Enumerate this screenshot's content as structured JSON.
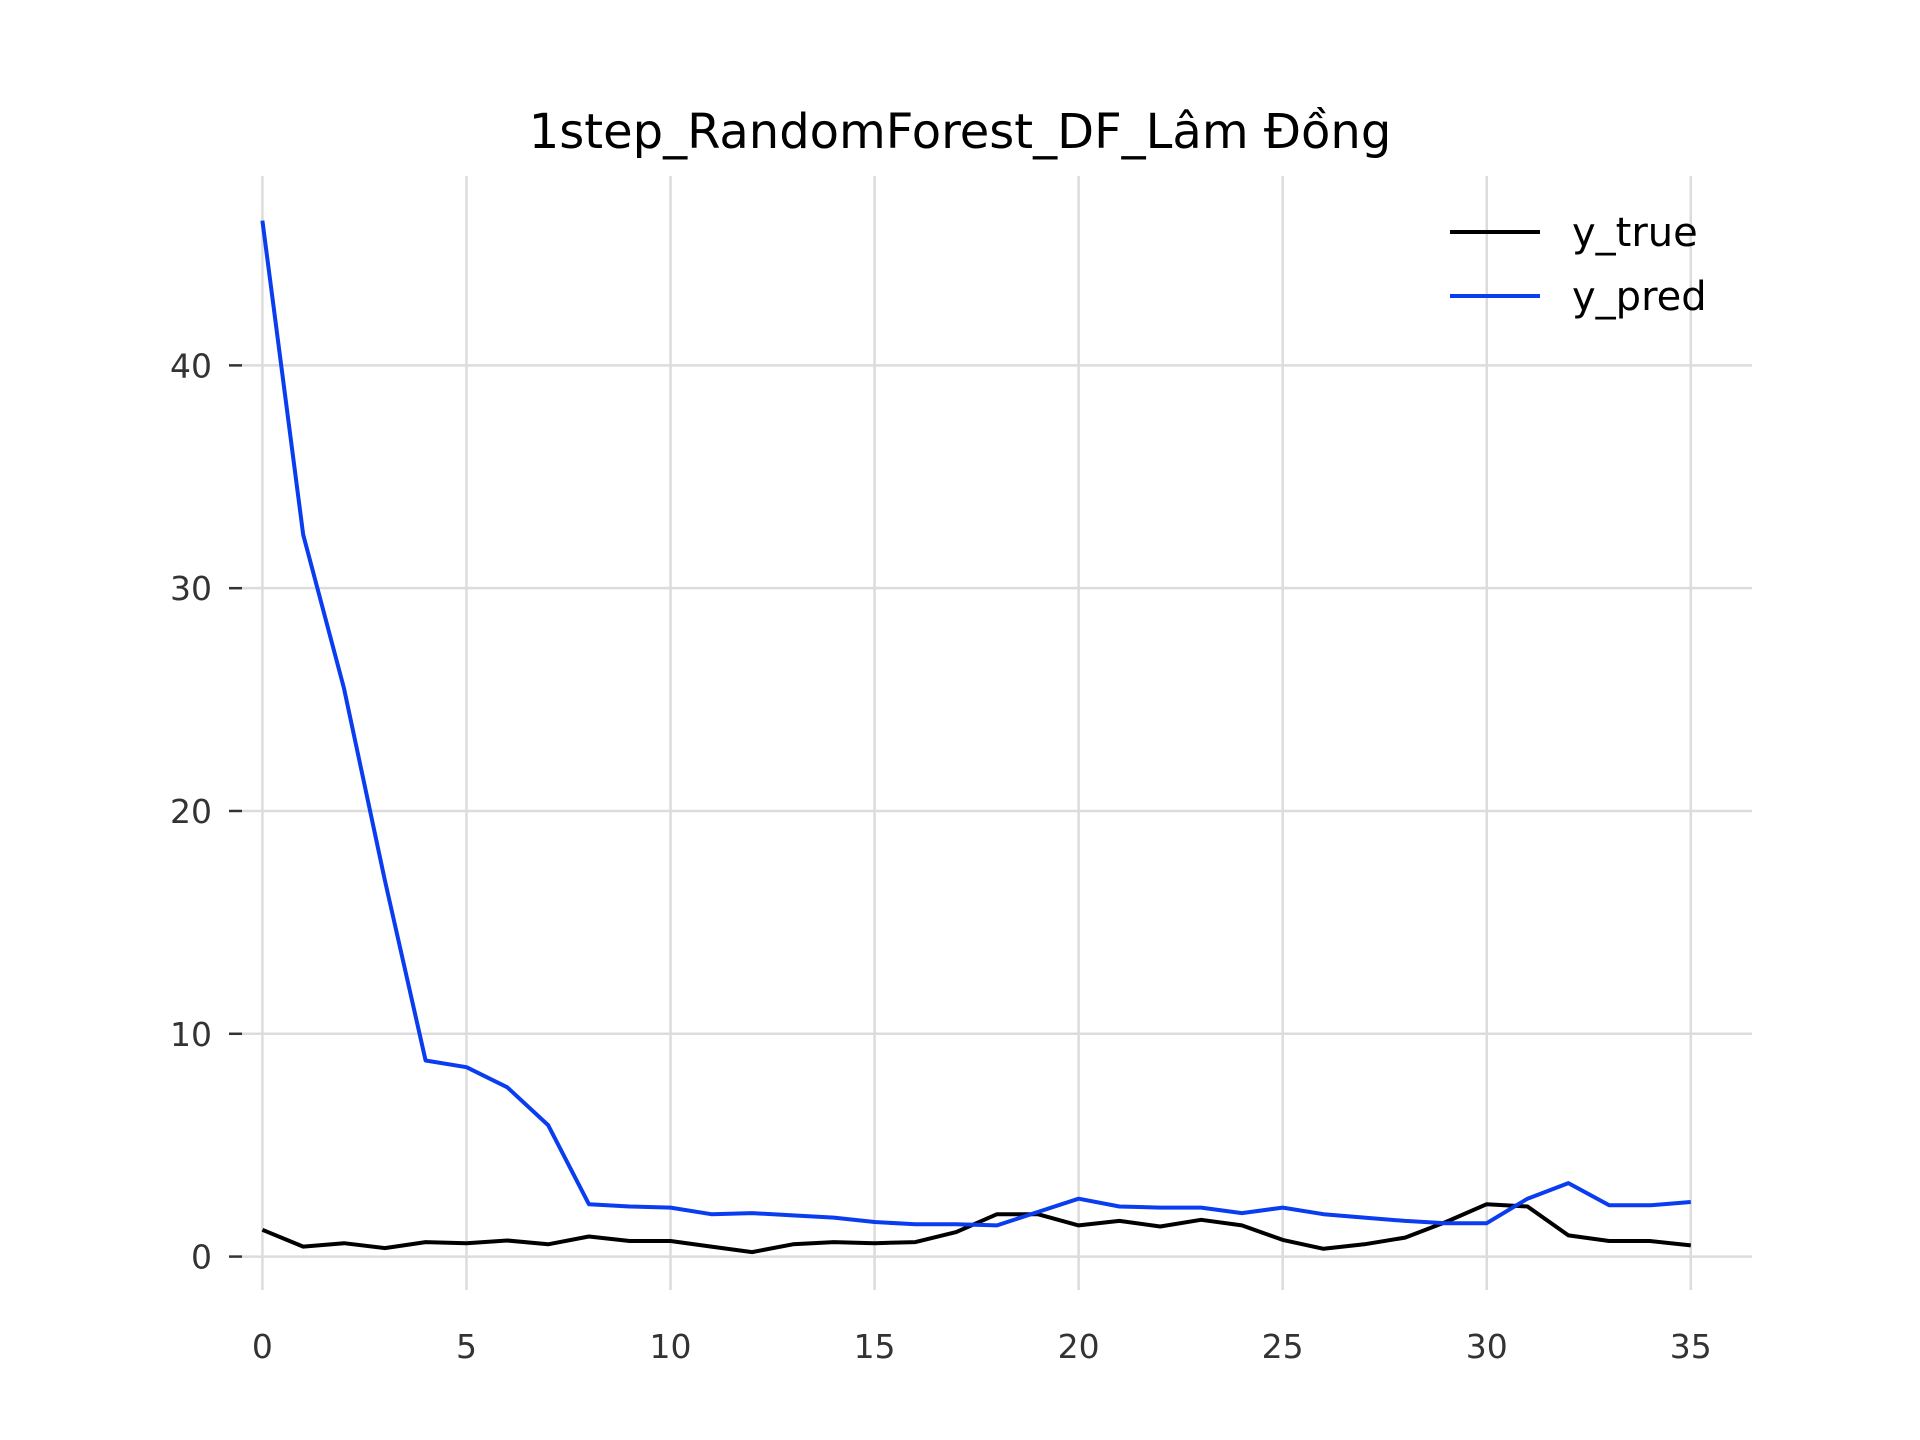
{
  "chart_data": {
    "type": "line",
    "title": "1step_RandomForest_DF_Lâm Đồng",
    "xlabel": "",
    "ylabel": "",
    "xlim": [
      0,
      36
    ],
    "ylim": [
      -1.5,
      48.5
    ],
    "grid": true,
    "legend_position": "top-right",
    "x_ticks": [
      0,
      5,
      10,
      15,
      20,
      25,
      30,
      35
    ],
    "y_ticks": [
      0,
      10,
      20,
      30,
      40
    ],
    "x": [
      0,
      1,
      2,
      3,
      4,
      5,
      6,
      7,
      8,
      9,
      10,
      11,
      12,
      13,
      14,
      15,
      16,
      17,
      18,
      19,
      20,
      21,
      22,
      23,
      24,
      25,
      26,
      27,
      28,
      29,
      30,
      31,
      32,
      33,
      34,
      35
    ],
    "series": [
      {
        "name": "y_true",
        "color": "#000000",
        "values": [
          1.2,
          0.45,
          0.6,
          0.38,
          0.65,
          0.6,
          0.72,
          0.55,
          0.9,
          0.7,
          0.7,
          0.45,
          0.2,
          0.55,
          0.65,
          0.6,
          0.65,
          1.1,
          1.9,
          1.9,
          1.4,
          1.6,
          1.35,
          1.65,
          1.4,
          0.75,
          0.35,
          0.55,
          0.85,
          1.55,
          2.35,
          2.25,
          0.95,
          0.7,
          0.7,
          0.5
        ]
      },
      {
        "name": "y_pred",
        "color": "#0a3cf0",
        "values": [
          46.5,
          32.4,
          25.5,
          16.9,
          8.8,
          8.5,
          7.6,
          5.9,
          2.35,
          2.25,
          2.2,
          1.9,
          1.95,
          1.85,
          1.75,
          1.55,
          1.45,
          1.45,
          1.4,
          2.0,
          2.6,
          2.25,
          2.2,
          2.2,
          1.95,
          2.2,
          1.9,
          1.75,
          1.6,
          1.5,
          1.5,
          2.6,
          3.3,
          2.3,
          2.3,
          2.45
        ]
      }
    ]
  }
}
